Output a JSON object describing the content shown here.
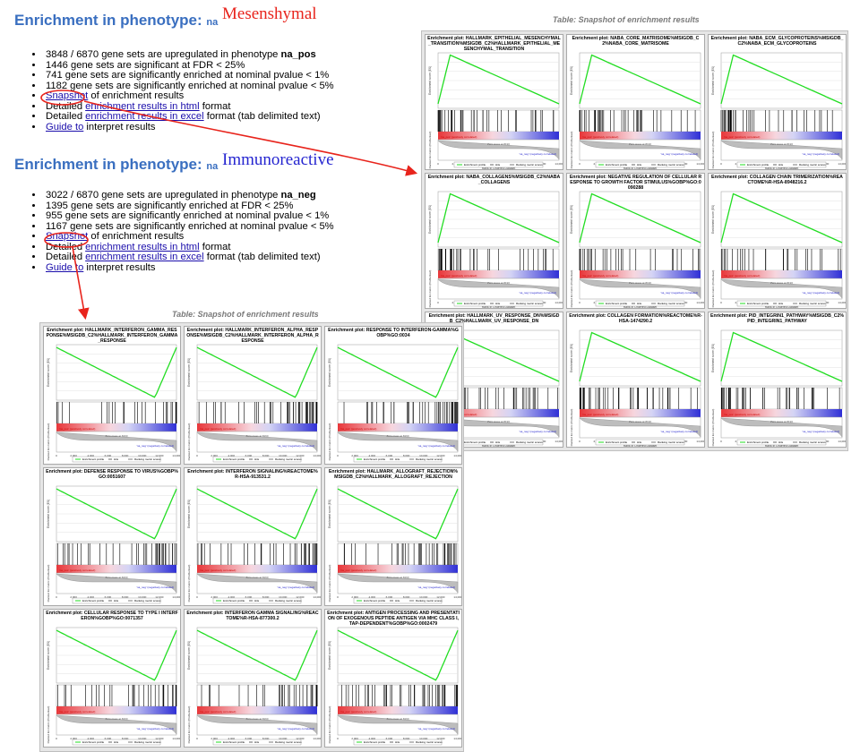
{
  "section1": {
    "heading": "Enrichment in phenotype:",
    "phenotype": "na",
    "annotation": "Mesenshymal",
    "items": [
      {
        "text": "3848 / 6870 gene sets are upregulated in phenotype "
      },
      {
        "text": "1446 gene sets are significant at FDR < 25%"
      },
      {
        "text": "741 gene sets are significantly enriched at nominal pvalue < 1%"
      },
      {
        "text": "1182 gene sets are significantly enriched at nominal pvalue < 5%"
      }
    ],
    "upregulated_label": "na_pos",
    "snapshot_link": "Snapshot",
    "snapshot_rest": " of enrichment results",
    "detailed_prefix": "Detailed ",
    "html_link": "enrichment results in html",
    "html_rest": " format",
    "excel_link": "enrichment results in excel",
    "excel_rest": " format (tab delimited text)",
    "guide_link": "Guide to",
    "guide_rest": " interpret results"
  },
  "section2": {
    "heading": "Enrichment in phenotype:",
    "phenotype": "na",
    "annotation": "Immunoreactive",
    "items": [
      {
        "text": "3022 / 6870 gene sets are upregulated in phenotype "
      },
      {
        "text": "1395 gene sets are significantly enriched at FDR < 25%"
      },
      {
        "text": "955 gene sets are significantly enriched at nominal pvalue < 1%"
      },
      {
        "text": "1167 gene sets are significantly enriched at nominal pvalue < 5%"
      }
    ],
    "upregulated_label": "na_neg",
    "snapshot_link": "Snapshot",
    "snapshot_rest": " of enrichment results",
    "detailed_prefix": "Detailed ",
    "html_link": "enrichment results in html",
    "html_rest": " format",
    "excel_link": "enrichment results in excel",
    "excel_rest": " format (tab delimited text)",
    "guide_link": "Guide to",
    "guide_rest": " interpret results"
  },
  "table_caption": "Table: Snapshot of enrichment results",
  "colors": {
    "heading": "#3a6fc0",
    "annotation": "#e8241c",
    "annotation_immuno": "#2525d0",
    "arrow": "#e8241c",
    "curve": "#22dd22",
    "link": "#1a0dab"
  },
  "mesenchymal_plots": [
    {
      "title": "Enrichment plot: HALLMARK_EPITHELIAL_MESENCHYMAL_TRANSITION%MSIGDB_C2%HALLMARK_EPITHELIAL_MESENCHYMAL_TRANSITION",
      "direction": "pos"
    },
    {
      "title": "Enrichment plot: NABA_CORE_MATRISOME%MSIGDB_C2%NABA_CORE_MATRISOME",
      "direction": "pos"
    },
    {
      "title": "Enrichment plot: NABA_ECM_GLYCOPROTEINS%MSIGDB_C2%NABA_ECM_GLYCOPROTEINS",
      "direction": "pos"
    },
    {
      "title": "Enrichment plot: NABA_COLLAGENS%MSIGDB_C2%NABA_COLLAGENS",
      "direction": "pos"
    },
    {
      "title": "Enrichment plot: NEGATIVE REGULATION OF CELLULAR RESPONSE TO GROWTH FACTOR STIMULUS%GOBP%GO:0090288",
      "direction": "pos"
    },
    {
      "title": "Enrichment plot: COLLAGEN CHAIN TRIMERIZATION%REACTOME%R-HSA-8948216.2",
      "direction": "pos"
    },
    {
      "title": "Enrichment plot: HALLMARK_UV_RESPONSE_DN%MSIGDB_C2%HALLMARK_UV_RESPONSE_DN",
      "direction": "pos"
    },
    {
      "title": "Enrichment plot: COLLAGEN FORMATION%REACTOME%R-HSA-1474290.2",
      "direction": "pos"
    },
    {
      "title": "Enrichment plot: PID_INTEGRIN1_PATHWAY%MSIGDB_C2%PID_INTEGRIN1_PATHWAY",
      "direction": "pos"
    }
  ],
  "immuno_plots": [
    {
      "title": "Enrichment plot: HALLMARK_INTERFERON_GAMMA_RESPONSE%MSIGDB_C2%HALLMARK_INTERFERON_GAMMA_RESPONSE",
      "direction": "neg"
    },
    {
      "title": "Enrichment plot: HALLMARK_INTERFERON_ALPHA_RESPONSE%MSIGDB_C2%HALLMARK_INTERFERON_ALPHA_RESPONSE",
      "direction": "neg"
    },
    {
      "title": "Enrichment plot: RESPONSE TO INTERFERON-GAMMA%GOBP%GO:0034",
      "direction": "neg"
    },
    {
      "title": "Enrichment plot: DEFENSE RESPONSE TO VIRUS%GOBP%GO:0051607",
      "direction": "neg"
    },
    {
      "title": "Enrichment plot: INTERFERON SIGNALING%REACTOME%R-HSA-913531.2",
      "direction": "neg"
    },
    {
      "title": "Enrichment plot: HALLMARK_ALLOGRAFT_REJECTION%MSIGDB_C2%HALLMARK_ALLOGRAFT_REJECTION",
      "direction": "neg"
    },
    {
      "title": "Enrichment plot: CELLULAR RESPONSE TO TYPE I INTERFERON%GOBP%GO:0071357",
      "direction": "neg"
    },
    {
      "title": "Enrichment plot: INTERFERON GAMMA SIGNALING%REACTOME%R-HSA-877300.2",
      "direction": "neg"
    },
    {
      "title": "Enrichment plot: ANTIGEN PROCESSING AND PRESENTATION OF EXOGENOUS PEPTIDE ANTIGEN VIA MHC CLASS I, TAP-DEPENDENT%GOBP%GO:0002479",
      "direction": "neg"
    }
  ],
  "plot_labels": {
    "ylabel_top": "Enrichment score (ES)",
    "ylabel_bottom": "Ranked list metric (PreRanked)",
    "xlabel": "Rank in Ordered Dataset",
    "legend_profile": "Enrichment profile",
    "legend_hits": "Hits",
    "legend_ranking": "Ranking metric scores",
    "x_ticks": [
      "0",
      "2,000",
      "4,000",
      "6,000",
      "8,000",
      "10,000",
      "12,000",
      "14,000"
    ],
    "zero_cross": "Zero cross at 8190",
    "pos_label": "'na_pos' (positively correlated)",
    "neg_label": "'na_neg' (negatively correlated)"
  }
}
